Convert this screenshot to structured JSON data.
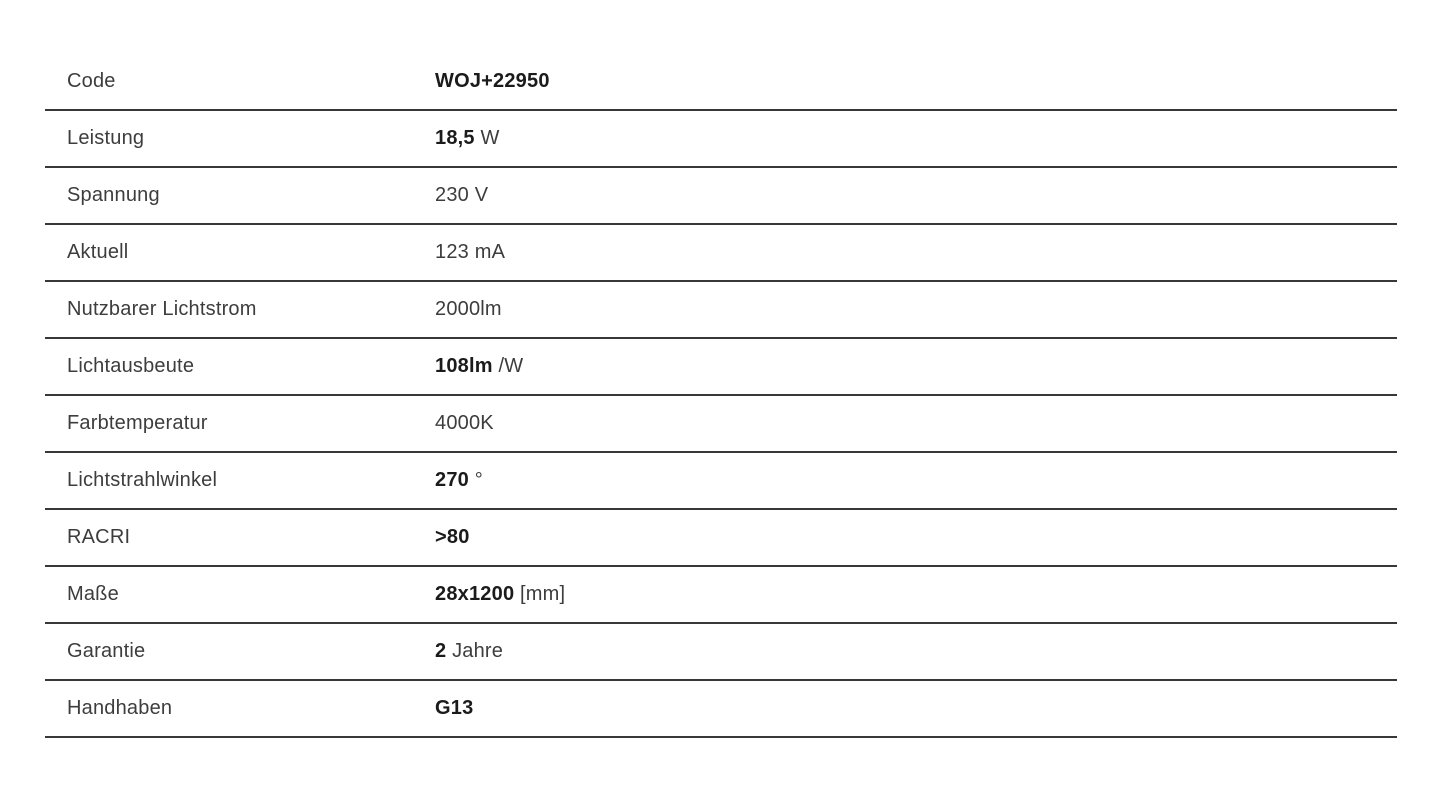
{
  "page": {
    "background_color": "#ffffff"
  },
  "colors": {
    "row_divider": "#383838",
    "label_text": "#3d3d3d",
    "value_regular_text": "#3d3d3d",
    "value_bold_text": "#1b1b1b"
  },
  "spec_table": {
    "rows": [
      {
        "label": "Code",
        "value_bold": "WOJ+22950",
        "value_regular": ""
      },
      {
        "label": "Leistung",
        "value_bold": "18,5",
        "value_regular": " W"
      },
      {
        "label": "Spannung",
        "value_bold": "",
        "value_regular": "230 V"
      },
      {
        "label": "Aktuell",
        "value_bold": "",
        "value_regular": "123 mA"
      },
      {
        "label": "Nutzbarer Lichtstrom",
        "value_bold": "",
        "value_regular": "2000lm"
      },
      {
        "label": "Lichtausbeute",
        "value_bold": "108lm",
        "value_regular": " /W"
      },
      {
        "label": "Farbtemperatur",
        "value_bold": "",
        "value_regular": "4000K"
      },
      {
        "label": "Lichtstrahlwinkel",
        "value_bold": "270",
        "value_regular": " °"
      },
      {
        "label": "RACRI",
        "value_bold": ">80",
        "value_regular": ""
      },
      {
        "label": "Maße",
        "value_bold": "28x1200",
        "value_regular": " [mm]"
      },
      {
        "label": "Garantie",
        "value_bold": "2",
        "value_regular": " Jahre"
      },
      {
        "label": "Handhaben",
        "value_bold": "G13",
        "value_regular": ""
      }
    ]
  }
}
